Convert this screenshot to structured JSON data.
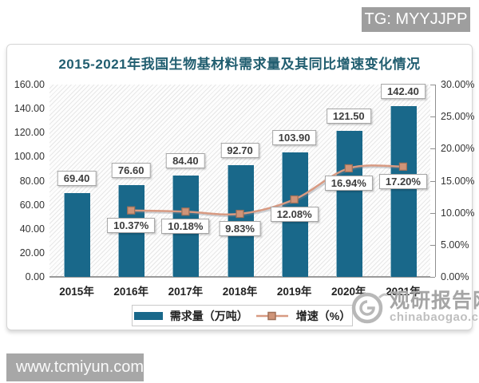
{
  "tg_badge": {
    "label": "TG: MYYJJPP"
  },
  "site_badge": {
    "label": "www.tcmiyun.com"
  },
  "brand_watermark": {
    "name": "观研报告网",
    "domain": "chinabaogao.com"
  },
  "chart_data": {
    "type": "bar",
    "subtype": "combo-bar-line",
    "title": "2015-2021年我国生物基材料需求量及其同比增速变化情况",
    "title_color": "#215e70",
    "categories": [
      "2015年",
      "2016年",
      "2017年",
      "2018年",
      "2019年",
      "2020年",
      "2021年"
    ],
    "series": [
      {
        "name": "需求量（万吨）",
        "type": "bar",
        "axis": "left",
        "color": "#19688a",
        "values": [
          69.4,
          76.6,
          84.4,
          92.7,
          103.9,
          121.5,
          142.4
        ]
      },
      {
        "name": "增速（%）",
        "type": "line",
        "axis": "right",
        "color": "#d89a82",
        "marker_fill": "#cf9478",
        "marker_border": "#9f7058",
        "values": [
          null,
          10.37,
          10.18,
          9.83,
          12.08,
          16.94,
          17.2
        ]
      }
    ],
    "left_axis": {
      "min": 0,
      "max": 160,
      "step": 20,
      "decimals": 2,
      "suffix": ""
    },
    "right_axis": {
      "min": 0,
      "max": 30,
      "step": 5,
      "decimals": 2,
      "suffix": "%"
    },
    "legend_position": "bottom",
    "grid": false,
    "data_labels": true,
    "plot_background": "diagonal-hatch"
  }
}
